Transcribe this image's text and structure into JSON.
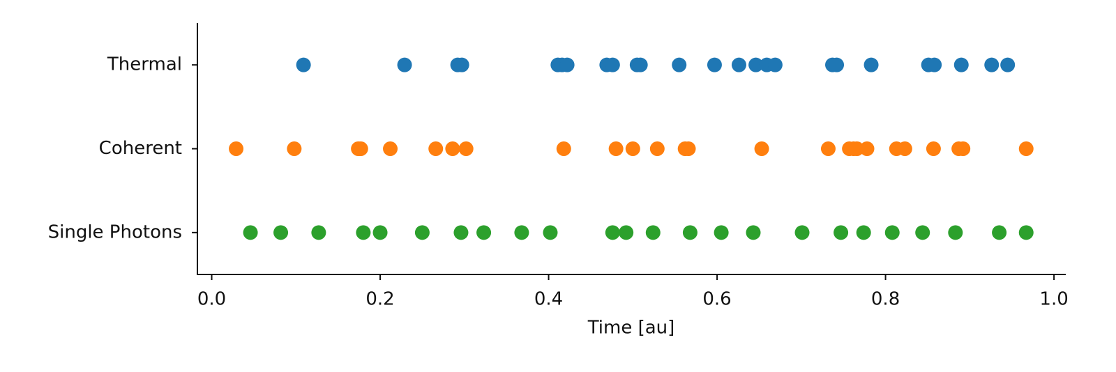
{
  "chart_data": {
    "type": "scatter",
    "xlabel": "Time  [au]",
    "xlim": [
      -0.017,
      1.014
    ],
    "xticks": [
      {
        "value": 0,
        "label": "0.0"
      },
      0.2,
      0.4,
      0.6,
      0.8,
      {
        "value": 1,
        "label": "1.0"
      }
    ],
    "series": [
      {
        "name": "Thermal",
        "color": "#1f77b4",
        "values": [
          0.109,
          0.229,
          0.292,
          0.297,
          0.411,
          0.416,
          0.422,
          0.469,
          0.476,
          0.505,
          0.509,
          0.555,
          0.597,
          0.626,
          0.646,
          0.659,
          0.669,
          0.737,
          0.742,
          0.783,
          0.851,
          0.858,
          0.89,
          0.926,
          0.945
        ]
      },
      {
        "name": "Coherent",
        "color": "#ff7f0e",
        "values": [
          0.029,
          0.098,
          0.174,
          0.177,
          0.212,
          0.266,
          0.286,
          0.302,
          0.418,
          0.48,
          0.5,
          0.529,
          0.562,
          0.566,
          0.653,
          0.732,
          0.757,
          0.762,
          0.766,
          0.778,
          0.813,
          0.823,
          0.857,
          0.887,
          0.892,
          0.967
        ]
      },
      {
        "name": "Single Photons",
        "color": "#2ca02c",
        "values": [
          0.046,
          0.082,
          0.127,
          0.18,
          0.2,
          0.25,
          0.296,
          0.323,
          0.368,
          0.402,
          0.476,
          0.492,
          0.524,
          0.568,
          0.605,
          0.643,
          0.701,
          0.747,
          0.774,
          0.808,
          0.844,
          0.883,
          0.935,
          0.967
        ]
      }
    ]
  }
}
